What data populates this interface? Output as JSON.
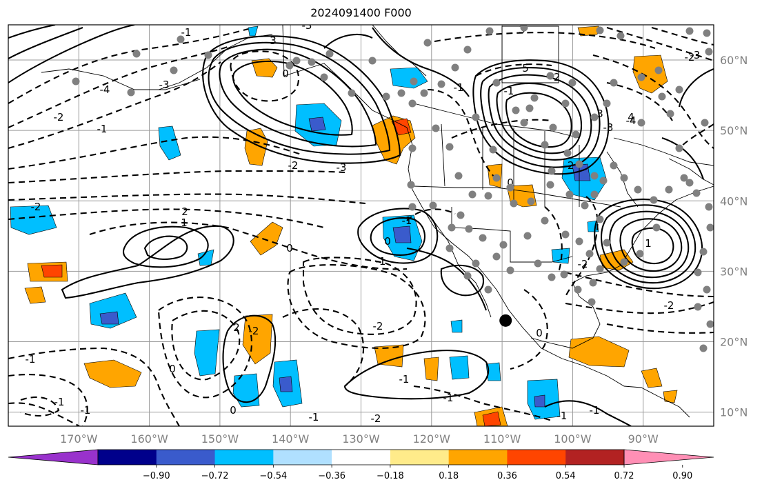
{
  "title": "2024091400 F000",
  "map": {
    "lon_range": [
      -180,
      -80
    ],
    "lat_range": [
      8,
      65
    ],
    "lon_ticks": [
      "170°W",
      "160°W",
      "150°W",
      "140°W",
      "130°W",
      "120°W",
      "110°W",
      "100°W",
      "90°W"
    ],
    "lat_ticks": [
      "60°N",
      "50°N",
      "40°N",
      "30°N",
      "20°N",
      "10°N"
    ],
    "grid": true,
    "marker": {
      "lon": -109.5,
      "lat": 23,
      "label": "point-marker"
    }
  },
  "contour_labels": [
    "-1",
    "-3",
    "3",
    "0",
    "-4",
    "-3",
    "-2",
    "-1",
    "-2",
    "-3",
    "3",
    "5",
    "-1",
    "-2",
    "-4",
    "-3",
    "-2",
    "0",
    "-1",
    "-2",
    "2",
    "1",
    "-2",
    "0",
    "-1",
    "0",
    "-1",
    "-2",
    "-2",
    "2",
    "-1",
    "-1",
    "-1",
    "-2",
    "0",
    "-1",
    "-1",
    "-1",
    "0",
    "-1",
    "-1",
    "-2",
    "1",
    "3",
    "4",
    "-2",
    "0",
    "-3"
  ],
  "colorbar": {
    "colors": [
      "#9932cc",
      "#00008b",
      "#3a5bcc",
      "#00bfff",
      "#b0e0ff",
      "#ffffff",
      "#ffeb8a",
      "#ffa500",
      "#ff4500",
      "#b22222",
      "#ff8fb5"
    ],
    "labels": [
      "−0.90",
      "−0.72",
      "−0.54",
      "−0.36",
      "−0.18",
      "0.18",
      "0.36",
      "0.54",
      "0.72",
      "0.90"
    ]
  }
}
